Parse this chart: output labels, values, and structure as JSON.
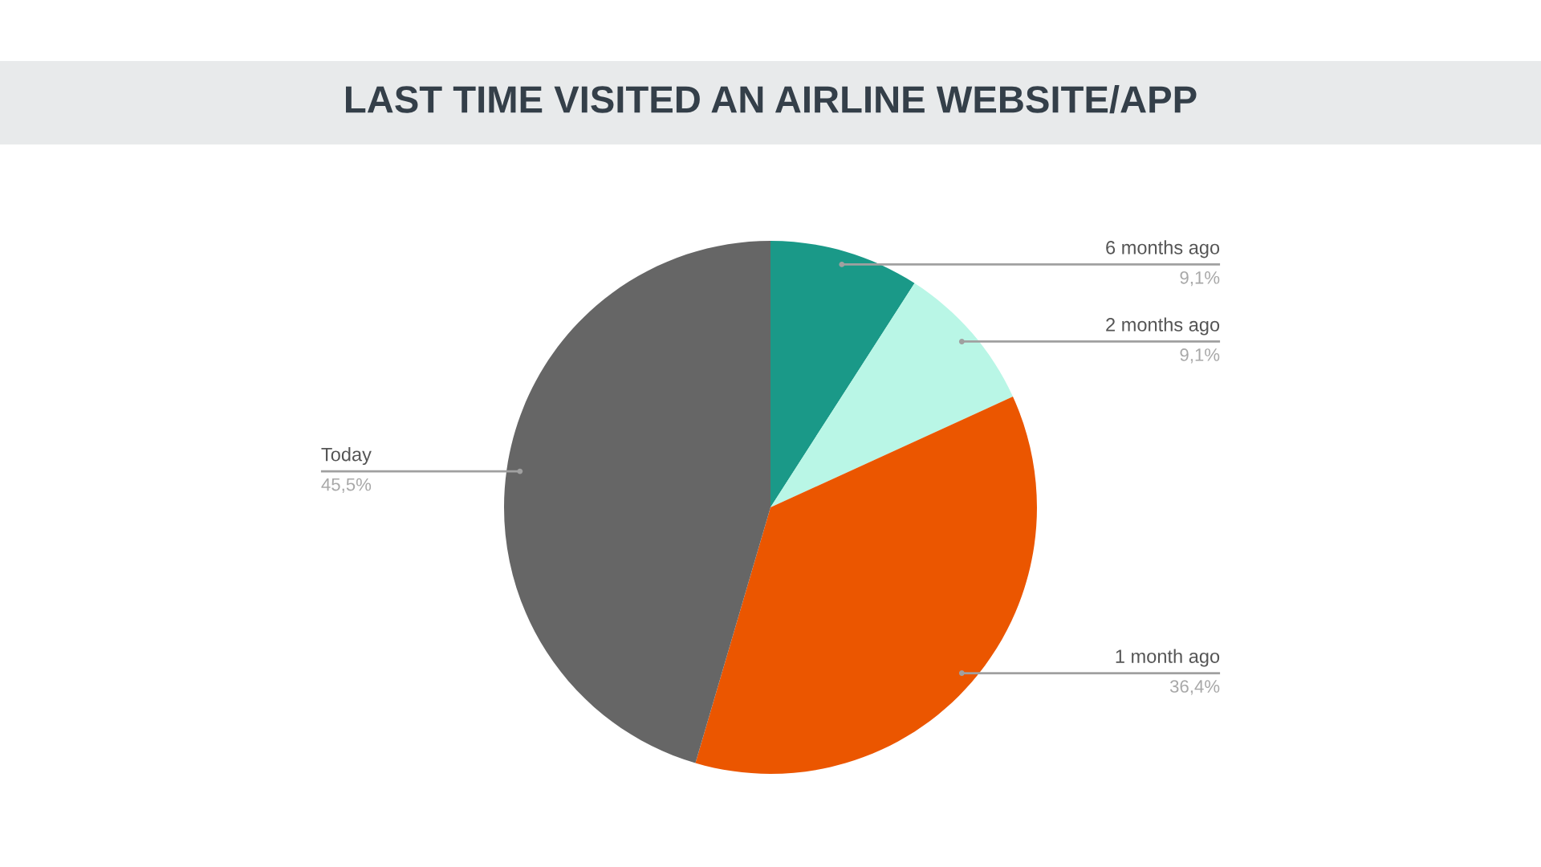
{
  "chart_data": {
    "type": "pie",
    "title": "LAST TIME VISITED AN AIRLINE WEBSITE/APP",
    "categories": [
      "6 months ago",
      "2 months ago",
      "1 month ago",
      "Today"
    ],
    "values": [
      9.1,
      9.1,
      36.4,
      45.5
    ],
    "colors": [
      "#1a9988",
      "#b9f6e6",
      "#eb5600",
      "#666666"
    ],
    "value_labels": [
      "9,1%",
      "9,1%",
      "36,4%",
      "45,5%"
    ]
  }
}
